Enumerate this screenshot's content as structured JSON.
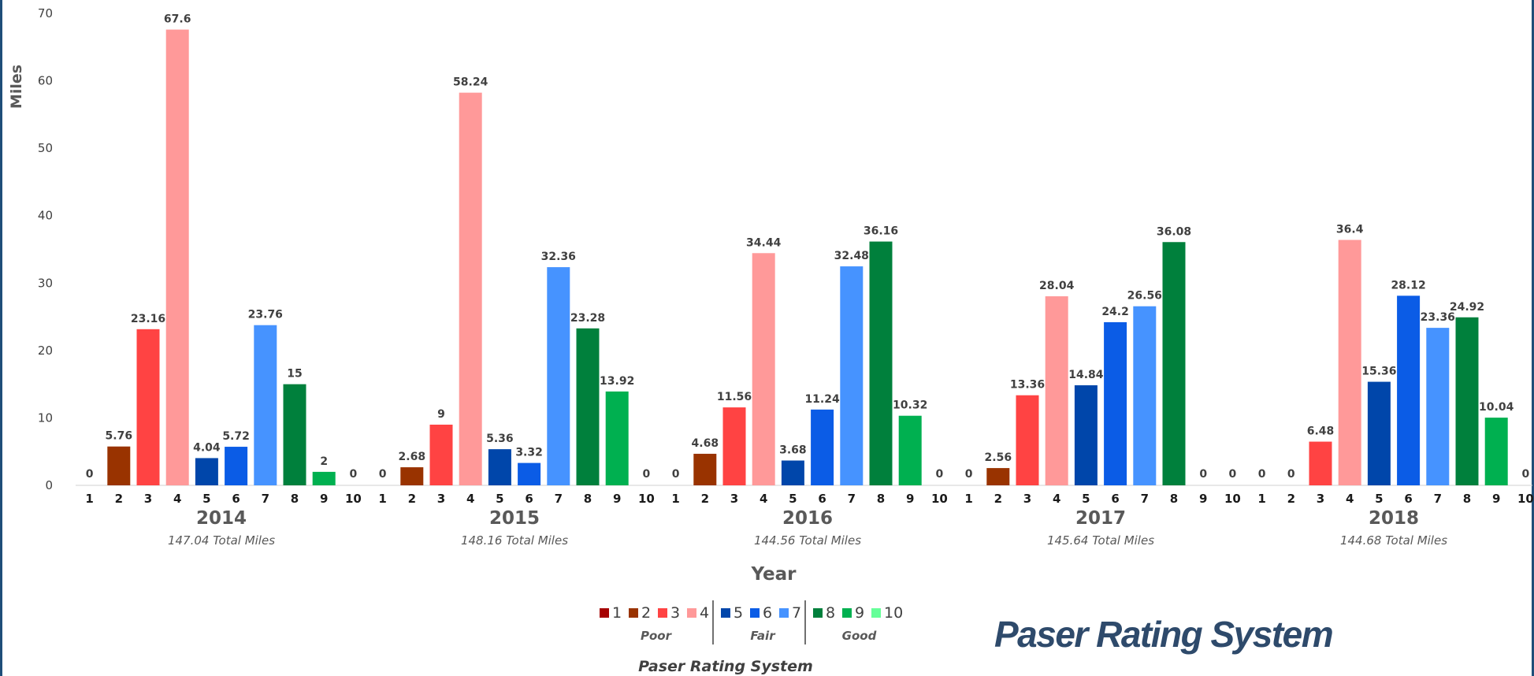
{
  "chart_data": {
    "type": "bar",
    "ylabel": "Miles",
    "xlabel": "Year",
    "ylim": [
      0,
      70
    ],
    "yticks": [
      0,
      10,
      20,
      30,
      40,
      50,
      60,
      70
    ],
    "rating_labels": [
      "1",
      "2",
      "3",
      "4",
      "5",
      "6",
      "7",
      "8",
      "9",
      "10"
    ],
    "groups": [
      {
        "year": "2014",
        "total_value": "147.04",
        "values": [
          0,
          5.76,
          23.16,
          67.6,
          4.04,
          5.72,
          23.76,
          15,
          2,
          0
        ]
      },
      {
        "year": "2015",
        "total_value": "148.16",
        "values": [
          0,
          2.68,
          9,
          58.24,
          5.36,
          3.32,
          32.36,
          23.28,
          13.92,
          0
        ]
      },
      {
        "year": "2016",
        "total_value": "144.56",
        "values": [
          0,
          4.68,
          11.56,
          34.44,
          3.68,
          11.24,
          32.48,
          36.16,
          10.32,
          0
        ]
      },
      {
        "year": "2017",
        "total_value": "145.64",
        "values": [
          0,
          2.56,
          13.36,
          28.04,
          14.84,
          24.2,
          26.56,
          36.08,
          0,
          0
        ]
      },
      {
        "year": "2018",
        "total_value": "144.68",
        "values": [
          0,
          0,
          6.48,
          36.4,
          15.36,
          28.12,
          23.36,
          24.92,
          10.04,
          0
        ]
      }
    ],
    "total_suffix": "Total Miles",
    "series_colors": [
      "#a50000",
      "#993300",
      "#ff4343",
      "#ff9999",
      "#0046aa",
      "#0b5ce6",
      "#4693ff",
      "#00803c",
      "#00b050",
      "#66ff99"
    ],
    "legend": {
      "title": "Paser Rating System",
      "groups": [
        {
          "label": "Poor",
          "items": [
            "1",
            "2",
            "3",
            "4"
          ]
        },
        {
          "label": "Fair",
          "items": [
            "5",
            "6",
            "7"
          ]
        },
        {
          "label": "Good",
          "items": [
            "8",
            "9",
            "10"
          ]
        }
      ]
    },
    "grid": false
  },
  "brand_title": "Paser Rating System"
}
